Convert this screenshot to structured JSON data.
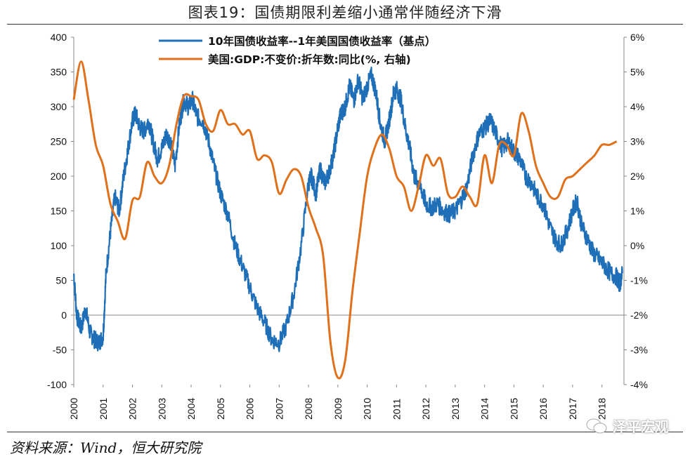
{
  "title": "图表19：国债期限利差缩小通常伴随经济下滑",
  "source": "资料来源：Wind，恒大研究院",
  "watermark": "泽平宏观",
  "chart_data": {
    "type": "line",
    "title": "图表19：国债期限利差缩小通常伴随经济下滑",
    "x_ticks": [
      "2000",
      "2001",
      "2002",
      "2003",
      "2004",
      "2005",
      "2006",
      "2007",
      "2008",
      "2009",
      "2010",
      "2011",
      "2012",
      "2013",
      "2014",
      "2015",
      "2016",
      "2017",
      "2018"
    ],
    "y_left": {
      "range": [
        -100,
        400
      ],
      "ticks": [
        "-100",
        "-50",
        "0",
        "50",
        "100",
        "150",
        "200",
        "250",
        "300",
        "350",
        "400"
      ]
    },
    "y_right": {
      "range": [
        -4,
        6
      ],
      "ticks": [
        "-4%",
        "-3%",
        "-2%",
        "-1%",
        "0%",
        "1%",
        "2%",
        "3%",
        "4%",
        "5%",
        "6%"
      ]
    },
    "legend_position": "top-center",
    "series": [
      {
        "name": "10年国债收益率--1年美国国债收益率（基点）",
        "color": "#1f6fb8",
        "axis": "left",
        "x": [
          2000.0,
          2000.1,
          2000.25,
          2000.4,
          2000.55,
          2000.7,
          2000.85,
          2001.0,
          2001.1,
          2001.25,
          2001.4,
          2001.55,
          2001.7,
          2001.85,
          2002.0,
          2002.1,
          2002.25,
          2002.4,
          2002.55,
          2002.7,
          2002.85,
          2003.0,
          2003.15,
          2003.3,
          2003.45,
          2003.6,
          2003.75,
          2003.9,
          2004.05,
          2004.2,
          2004.4,
          2004.6,
          2004.8,
          2005.0,
          2005.25,
          2005.5,
          2005.75,
          2006.0,
          2006.25,
          2006.5,
          2006.75,
          2007.0,
          2007.25,
          2007.5,
          2007.75,
          2008.0,
          2008.1,
          2008.25,
          2008.4,
          2008.55,
          2008.7,
          2008.85,
          2009.0,
          2009.1,
          2009.25,
          2009.4,
          2009.55,
          2009.7,
          2009.85,
          2010.0,
          2010.15,
          2010.3,
          2010.45,
          2010.6,
          2010.75,
          2010.9,
          2011.0,
          2011.15,
          2011.3,
          2011.45,
          2011.6,
          2011.75,
          2011.9,
          2012.0,
          2012.2,
          2012.4,
          2012.6,
          2012.8,
          2013.0,
          2013.2,
          2013.4,
          2013.6,
          2013.8,
          2014.0,
          2014.2,
          2014.4,
          2014.6,
          2014.8,
          2015.0,
          2015.2,
          2015.4,
          2015.6,
          2015.8,
          2016.0,
          2016.2,
          2016.4,
          2016.6,
          2016.8,
          2017.0,
          2017.15,
          2017.3,
          2017.5,
          2017.7,
          2017.9,
          2018.1,
          2018.3,
          2018.5,
          2018.6,
          2018.7
        ],
        "values": [
          60,
          0,
          -20,
          10,
          -25,
          -35,
          -40,
          -30,
          60,
          120,
          170,
          150,
          200,
          240,
          280,
          290,
          270,
          265,
          280,
          250,
          225,
          240,
          260,
          250,
          215,
          275,
          310,
          300,
          310,
          285,
          280,
          250,
          210,
          175,
          145,
          100,
          70,
          40,
          10,
          -10,
          -35,
          -40,
          -15,
          30,
          100,
          190,
          200,
          175,
          210,
          190,
          205,
          230,
          270,
          290,
          300,
          330,
          310,
          340,
          310,
          330,
          345,
          320,
          275,
          250,
          280,
          320,
          325,
          310,
          270,
          240,
          200,
          190,
          175,
          160,
          155,
          160,
          150,
          145,
          150,
          165,
          185,
          230,
          260,
          270,
          280,
          260,
          240,
          250,
          235,
          225,
          200,
          190,
          170,
          160,
          130,
          110,
          100,
          120,
          150,
          165,
          130,
          110,
          90,
          80,
          70,
          60,
          55,
          45,
          60
        ]
      },
      {
        "name": "美国:GDP:不变价:折年数:同比(%, 右轴)",
        "color": "#e0701a",
        "axis": "right",
        "x": [
          2000.0,
          2000.25,
          2000.5,
          2000.75,
          2001.0,
          2001.25,
          2001.5,
          2001.75,
          2002.0,
          2002.25,
          2002.5,
          2002.75,
          2003.0,
          2003.25,
          2003.5,
          2003.75,
          2004.0,
          2004.25,
          2004.5,
          2004.75,
          2005.0,
          2005.25,
          2005.5,
          2005.75,
          2006.0,
          2006.25,
          2006.5,
          2006.75,
          2007.0,
          2007.25,
          2007.5,
          2007.75,
          2008.0,
          2008.25,
          2008.5,
          2008.75,
          2009.0,
          2009.25,
          2009.5,
          2009.75,
          2010.0,
          2010.25,
          2010.5,
          2010.75,
          2011.0,
          2011.25,
          2011.5,
          2011.75,
          2012.0,
          2012.25,
          2012.5,
          2012.75,
          2013.0,
          2013.25,
          2013.5,
          2013.75,
          2014.0,
          2014.25,
          2014.5,
          2014.75,
          2015.0,
          2015.25,
          2015.5,
          2015.75,
          2016.0,
          2016.25,
          2016.5,
          2016.75,
          2017.0,
          2017.25,
          2017.5,
          2017.75,
          2018.0,
          2018.25,
          2018.5
        ],
        "values": [
          4.2,
          5.3,
          4.2,
          2.9,
          2.3,
          1.2,
          0.7,
          0.2,
          1.3,
          1.4,
          2.4,
          2.0,
          1.8,
          2.3,
          3.5,
          4.3,
          4.3,
          4.2,
          3.5,
          3.3,
          3.9,
          3.5,
          3.5,
          3.2,
          3.3,
          2.5,
          2.6,
          2.4,
          1.5,
          1.9,
          2.2,
          2.0,
          1.1,
          0.5,
          -0.3,
          -2.8,
          -3.8,
          -3.3,
          -1.3,
          0.4,
          2.0,
          2.8,
          3.2,
          2.8,
          2.0,
          1.7,
          1.0,
          1.7,
          2.6,
          2.3,
          2.5,
          1.5,
          1.4,
          1.7,
          1.4,
          1.2,
          2.6,
          1.8,
          2.9,
          2.9,
          2.6,
          3.8,
          3.3,
          2.3,
          1.8,
          1.4,
          1.4,
          1.9,
          2.0,
          2.2,
          2.4,
          2.6,
          2.9,
          2.9,
          3.0
        ]
      }
    ]
  }
}
